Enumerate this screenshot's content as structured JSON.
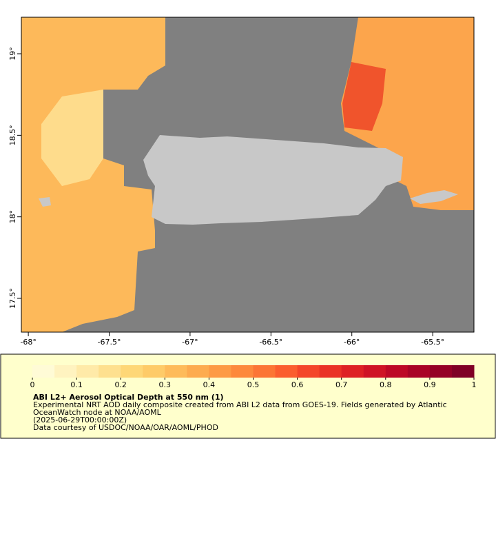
{
  "chart_data": {
    "type": "map",
    "xlim": [
      -68.043,
      -65.245
    ],
    "ylim": [
      17.293,
      19.224
    ],
    "xticks": [
      {
        "value": -68,
        "label": "-68°"
      },
      {
        "value": -67.5,
        "label": "-67.5°"
      },
      {
        "value": -67,
        "label": "-67°"
      },
      {
        "value": -66.5,
        "label": "-66.5°"
      },
      {
        "value": -66,
        "label": "-66°"
      },
      {
        "value": -65.5,
        "label": "-65.5°"
      }
    ],
    "yticks": [
      {
        "value": 17.5,
        "label": "17.5°"
      },
      {
        "value": 18,
        "label": "18°"
      },
      {
        "value": 18.5,
        "label": "18.5°"
      },
      {
        "value": 19,
        "label": "19°"
      }
    ],
    "colorbar": {
      "lim": [
        0,
        1
      ],
      "ticks": [
        0,
        0.1,
        0.2,
        0.3,
        0.4,
        0.5,
        0.6,
        0.7,
        0.8,
        0.9,
        1
      ],
      "colors": [
        "#fffbd6",
        "#fff3c0",
        "#ffeaa8",
        "#fee08f",
        "#fed777",
        "#fecb68",
        "#febb5a",
        "#fdab4f",
        "#fd9a45",
        "#fd893c",
        "#fc7535",
        "#fb5e2f",
        "#f4462a",
        "#ea3226",
        "#de2124",
        "#cf1325",
        "#bd0826",
        "#a90326",
        "#950026",
        "#800026"
      ]
    },
    "title": "ABI L2+ Aerosol Optical Depth at 550 nm (1)",
    "description": [
      "Experimental NRT AOD daily composite created from ABI L2 data from GOES-19. Fields generated by Atlantic",
      "OceanWatch node at NOAA/AOML",
      "(2025-06-29T00:00:00Z)",
      "Data courtesy of USDOC/NOAA/OAR/AOML/PHOD"
    ]
  }
}
